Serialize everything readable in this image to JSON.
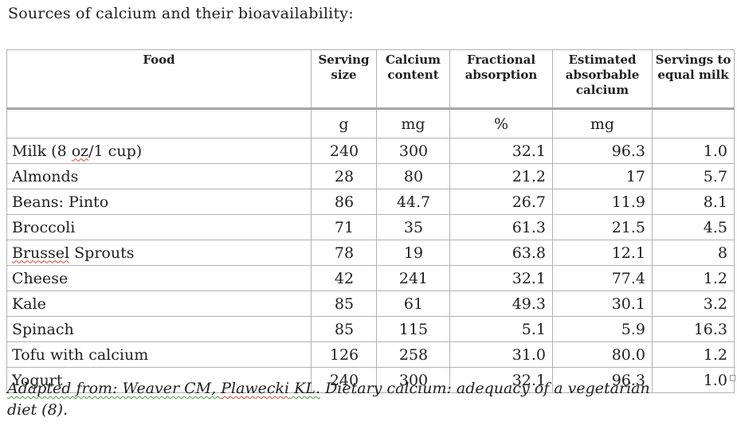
{
  "page": {
    "title": "Sources of calcium and their bioavailability:"
  },
  "table": {
    "columns": [
      {
        "label": "Food",
        "align": "left"
      },
      {
        "label": "Serving size",
        "align": "center",
        "unit": "g"
      },
      {
        "label": "Calcium content",
        "align": "center",
        "unit": "mg"
      },
      {
        "label": "Fractional absorption",
        "align": "right",
        "unit": "%"
      },
      {
        "label": "Estimated absorbable calcium",
        "align": "right",
        "unit": "mg"
      },
      {
        "label": "Servings to equal milk",
        "align": "right",
        "unit": ""
      }
    ],
    "units": [
      "",
      "g",
      "mg",
      "%",
      "mg",
      ""
    ],
    "rows": [
      {
        "food": [
          {
            "t": "Milk (8 "
          },
          {
            "t": "oz",
            "mark": "red"
          },
          {
            "t": "/1 cup)"
          }
        ],
        "values": [
          "240",
          "300",
          "32.1",
          "96.3",
          "1.0"
        ]
      },
      {
        "food": [
          {
            "t": "Almonds"
          }
        ],
        "values": [
          "28",
          "80",
          "21.2",
          "17",
          "5.7"
        ]
      },
      {
        "food": [
          {
            "t": "Beans: Pinto"
          }
        ],
        "values": [
          "86",
          "44.7",
          "26.7",
          "11.9",
          "8.1"
        ]
      },
      {
        "food": [
          {
            "t": "Broccoli"
          }
        ],
        "values": [
          "71",
          "35",
          "61.3",
          "21.5",
          "4.5"
        ]
      },
      {
        "food": [
          {
            "t": "Brussel",
            "mark": "red"
          },
          {
            "t": " Sprouts"
          }
        ],
        "values": [
          "78",
          "19",
          "63.8",
          "12.1",
          "8"
        ]
      },
      {
        "food": [
          {
            "t": "Cheese"
          }
        ],
        "values": [
          "42",
          "241",
          "32.1",
          "77.4",
          "1.2"
        ]
      },
      {
        "food": [
          {
            "t": "Kale"
          }
        ],
        "values": [
          "85",
          "61",
          "49.3",
          "30.1",
          "3.2"
        ]
      },
      {
        "food": [
          {
            "t": "Spinach"
          }
        ],
        "values": [
          "85",
          "115",
          "5.1",
          "5.9",
          "16.3"
        ]
      },
      {
        "food": [
          {
            "t": "Tofu with calcium"
          }
        ],
        "values": [
          "126",
          "258",
          "31.0",
          "80.0",
          "1.2"
        ]
      },
      {
        "food": [
          {
            "t": "Yogurt"
          }
        ],
        "values": [
          "240",
          "300",
          "32.1",
          "96.3",
          "1.0"
        ]
      }
    ]
  },
  "footer": {
    "segments": [
      {
        "t": "Adapted from: Weaver CM, ",
        "mark": "green"
      },
      {
        "t": "Plawecki",
        "mark": "red"
      },
      {
        "t": " KL.",
        "mark": "green"
      },
      {
        "t": " Dietary calcium: adequacy of a vegetarian",
        "mark": "none"
      },
      {
        "t": "diet (8).",
        "mark": "none",
        "break": true
      }
    ]
  },
  "colors": {
    "text": "#1f1f1f",
    "grid_line": "#b2b2b2",
    "header_separator": "#a6a6a6",
    "spellcheck_red": "#e0442c",
    "grammar_green": "#3f9e3f",
    "background": "#ffffff"
  }
}
